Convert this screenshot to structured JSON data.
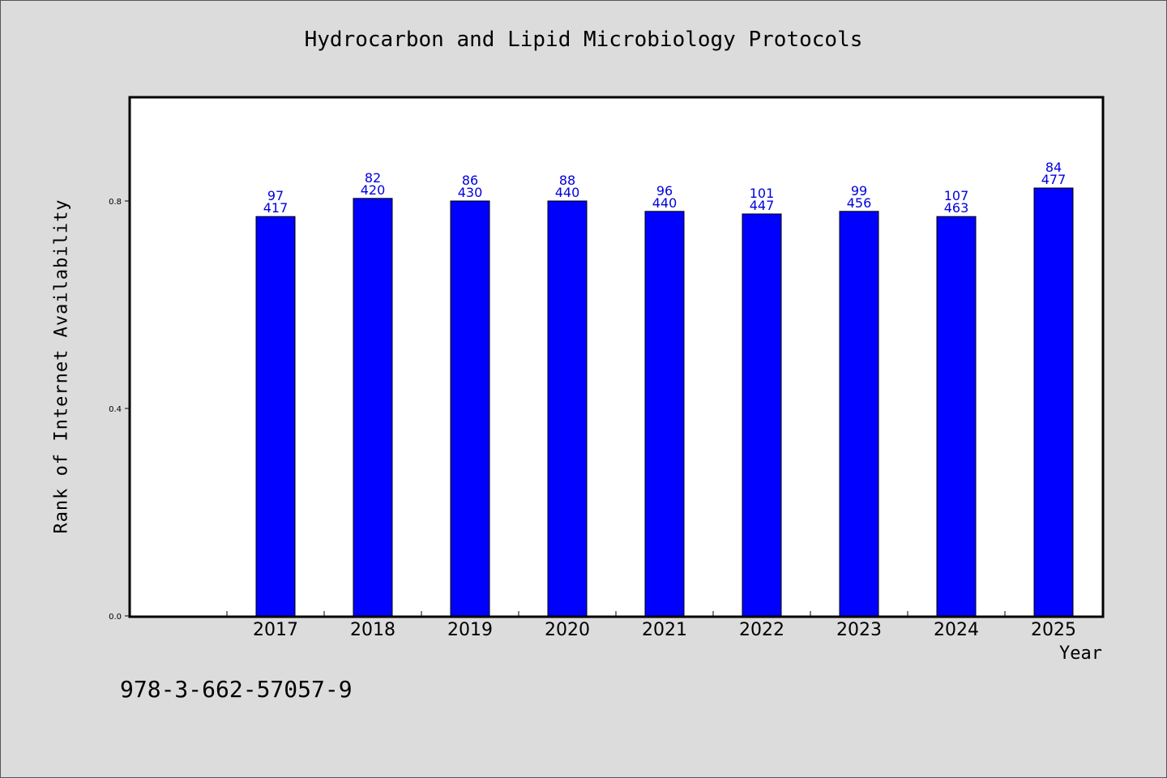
{
  "chart_data": {
    "type": "bar",
    "title": "Hydrocarbon and Lipid Microbiology Protocols",
    "xlabel": "Year",
    "ylabel": "Rank of Internet Availability",
    "categories": [
      "2017",
      "2018",
      "2019",
      "2020",
      "2021",
      "2022",
      "2023",
      "2024",
      "2025"
    ],
    "values": [
      0.77,
      0.805,
      0.8,
      0.8,
      0.78,
      0.775,
      0.78,
      0.77,
      0.825
    ],
    "data_labels_top": [
      "97",
      "82",
      "86",
      "88",
      "96",
      "101",
      "99",
      "107",
      "84"
    ],
    "data_labels_bottom": [
      "417",
      "420",
      "430",
      "440",
      "440",
      "447",
      "456",
      "463",
      "477"
    ],
    "ylim": [
      0,
      1.0
    ],
    "yticks": [
      0.0,
      0.4,
      0.8
    ],
    "ytick_labels": [
      "0.0",
      "0.4",
      "0.8"
    ],
    "bar_color": "#0000ff",
    "label_color": "#0000dd",
    "grid": false,
    "legend": "none"
  },
  "footer": {
    "isbn": "978-3-662-57057-9"
  }
}
